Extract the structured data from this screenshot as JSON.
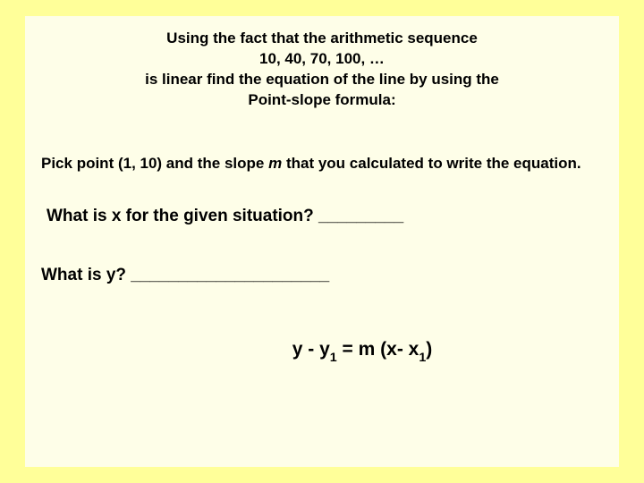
{
  "colors": {
    "outer_bg": "#ffff99",
    "inner_bg": "#fefee8",
    "text": "#000000"
  },
  "header": {
    "line1": "Using the fact that the arithmetic sequence",
    "line2": "10, 40, 70, 100, …",
    "line3": "is linear find the equation of the line by using the",
    "line4": "Point-slope formula:"
  },
  "instruction": {
    "part1": "Pick point (1, 10)  and the slope ",
    "slope_var": "m",
    "part2": " that you calculated to write the equation."
  },
  "question_x": {
    "text": "What is x for the given situation?  ",
    "blank": "_________"
  },
  "question_y": {
    "text": "What is y?  ",
    "blank": "_____________________"
  },
  "formula": {
    "p1": "y - y",
    "sub1": "1",
    "p2": " = m (x- x",
    "sub2": "1",
    "p3": ")"
  }
}
